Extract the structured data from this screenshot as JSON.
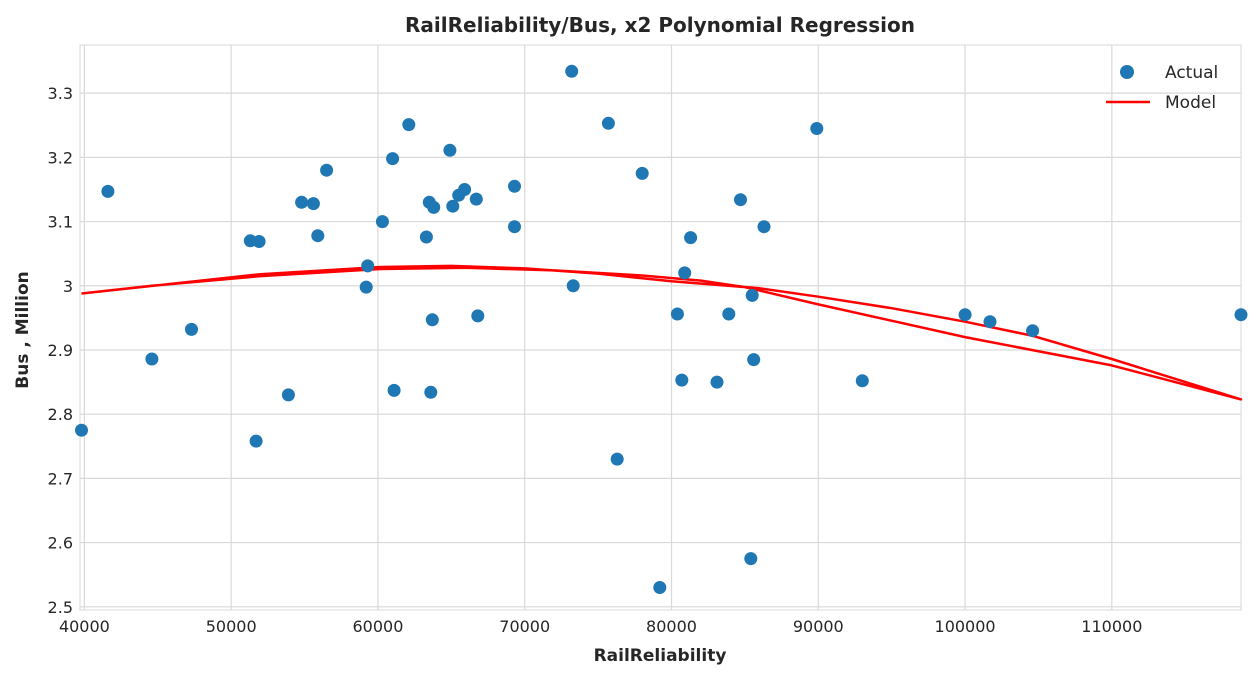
{
  "chart_data": {
    "type": "scatter",
    "title": "RailReliability/Bus, x2 Polynomial Regression",
    "xlabel": "RailReliability",
    "ylabel": "Bus , Million",
    "xlim": [
      39700,
      118800
    ],
    "ylim": [
      2.495,
      3.375
    ],
    "xticks": [
      40000,
      50000,
      60000,
      70000,
      80000,
      90000,
      100000,
      110000
    ],
    "yticks": [
      2.5,
      2.6,
      2.7,
      2.8,
      2.9,
      3,
      3.1,
      3.2,
      3.3
    ],
    "ytick_labels": [
      "2.5",
      "2.6",
      "2.7",
      "2.8",
      "2.9",
      "3",
      "3.1",
      "3.2",
      "3.3"
    ],
    "grid": true,
    "legend": "top-right",
    "colors": {
      "actual": "#1f77b4",
      "model": "#ff0000",
      "grid": "#d9d9d9"
    },
    "series": [
      {
        "name": "Actual",
        "kind": "scatter",
        "points": [
          [
            39800,
            2.775
          ],
          [
            41600,
            3.147
          ],
          [
            44600,
            2.886
          ],
          [
            47300,
            2.932
          ],
          [
            51300,
            3.07
          ],
          [
            51700,
            2.758
          ],
          [
            51900,
            3.069
          ],
          [
            53900,
            2.83
          ],
          [
            54800,
            3.13
          ],
          [
            55600,
            3.128
          ],
          [
            55900,
            3.078
          ],
          [
            56500,
            3.18
          ],
          [
            59200,
            2.998
          ],
          [
            59300,
            3.031
          ],
          [
            60300,
            3.1
          ],
          [
            61000,
            3.198
          ],
          [
            61100,
            2.837
          ],
          [
            62100,
            3.251
          ],
          [
            63300,
            3.076
          ],
          [
            63500,
            3.13
          ],
          [
            63600,
            2.834
          ],
          [
            63700,
            2.947
          ],
          [
            63800,
            3.122
          ],
          [
            64900,
            3.211
          ],
          [
            65100,
            3.124
          ],
          [
            65500,
            3.141
          ],
          [
            65900,
            3.15
          ],
          [
            66700,
            3.135
          ],
          [
            66800,
            2.953
          ],
          [
            69300,
            3.155
          ],
          [
            69300,
            3.092
          ],
          [
            73200,
            3.334
          ],
          [
            73300,
            3.0
          ],
          [
            75700,
            3.253
          ],
          [
            76300,
            2.73
          ],
          [
            78000,
            3.175
          ],
          [
            79200,
            2.53
          ],
          [
            80400,
            2.956
          ],
          [
            80700,
            2.853
          ],
          [
            80900,
            3.02
          ],
          [
            81300,
            3.075
          ],
          [
            83100,
            2.85
          ],
          [
            83900,
            2.956
          ],
          [
            84700,
            3.134
          ],
          [
            85400,
            2.575
          ],
          [
            85500,
            2.985
          ],
          [
            85600,
            2.885
          ],
          [
            86300,
            3.092
          ],
          [
            89900,
            3.245
          ],
          [
            93000,
            2.852
          ],
          [
            100000,
            2.955
          ],
          [
            101700,
            2.944
          ],
          [
            104600,
            2.93
          ],
          [
            118800,
            2.955
          ]
        ]
      },
      {
        "name": "Model",
        "kind": "line",
        "points": [
          [
            39800,
            2.988
          ],
          [
            52000,
            3.018
          ],
          [
            60000,
            3.029
          ],
          [
            65000,
            3.031
          ],
          [
            70000,
            3.027
          ],
          [
            75000,
            3.019
          ],
          [
            80000,
            3.007
          ],
          [
            86000,
            2.996
          ],
          [
            90000,
            2.983
          ],
          [
            95000,
            2.965
          ],
          [
            100000,
            2.944
          ],
          [
            104600,
            2.922
          ],
          [
            110000,
            2.886
          ],
          [
            118800,
            2.823
          ],
          [
            110000,
            2.876
          ],
          [
            100000,
            2.92
          ],
          [
            90000,
            2.971
          ],
          [
            85000,
            2.998
          ],
          [
            82000,
            3.008
          ],
          [
            78000,
            3.016
          ],
          [
            72000,
            3.024
          ],
          [
            66000,
            3.028
          ],
          [
            60000,
            3.026
          ],
          [
            52000,
            3.015
          ],
          [
            44600,
            3.0
          ],
          [
            39800,
            2.988
          ]
        ]
      }
    ]
  }
}
